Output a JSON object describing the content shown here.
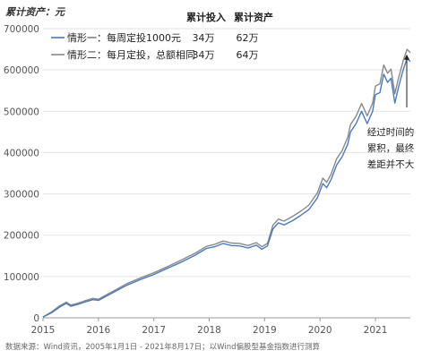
{
  "chart_data": {
    "type": "line",
    "ylabel": "累计资产：元",
    "ylim": [
      0,
      700000
    ],
    "yticks": [
      0,
      100000,
      200000,
      300000,
      400000,
      500000,
      600000,
      700000
    ],
    "xlim": [
      2015.0,
      2021.63
    ],
    "xticks": [
      "2015",
      "2016",
      "2017",
      "2018",
      "2019",
      "2020",
      "2021"
    ],
    "grid": true,
    "legend_position": "top-left",
    "legend": {
      "header_invest": "累计投入",
      "header_assets": "累计资产"
    },
    "series": [
      {
        "name": "情形一：每周定投1000元",
        "invest": "34万",
        "assets": "62万",
        "color": "#4a7ab8",
        "x": [
          2015.0,
          2015.15,
          2015.3,
          2015.42,
          2015.5,
          2015.62,
          2015.75,
          2015.9,
          2016.0,
          2016.08,
          2016.25,
          2016.5,
          2016.75,
          2017.0,
          2017.25,
          2017.5,
          2017.75,
          2017.95,
          2018.1,
          2018.25,
          2018.4,
          2018.55,
          2018.7,
          2018.85,
          2018.95,
          2019.05,
          2019.15,
          2019.25,
          2019.35,
          2019.5,
          2019.65,
          2019.8,
          2019.95,
          2020.05,
          2020.12,
          2020.2,
          2020.3,
          2020.4,
          2020.5,
          2020.55,
          2020.65,
          2020.75,
          2020.85,
          2020.95,
          2021.0,
          2021.08,
          2021.15,
          2021.22,
          2021.28,
          2021.35,
          2021.42,
          2021.5,
          2021.57,
          2021.63
        ],
        "y": [
          2000,
          12000,
          26000,
          35000,
          28000,
          32000,
          38000,
          44000,
          42000,
          48000,
          60000,
          78000,
          92000,
          105000,
          120000,
          135000,
          152000,
          168000,
          172000,
          180000,
          175000,
          174000,
          169000,
          176000,
          166000,
          174000,
          215000,
          230000,
          225000,
          235000,
          248000,
          262000,
          290000,
          325000,
          315000,
          335000,
          370000,
          390000,
          420000,
          450000,
          470000,
          500000,
          470000,
          500000,
          540000,
          545000,
          590000,
          570000,
          580000,
          520000,
          560000,
          600000,
          628000,
          620000
        ]
      },
      {
        "name": "情形二：每月定投，总额相同",
        "invest": "34万",
        "assets": "64万",
        "color": "#888888",
        "x": [
          2015.0,
          2015.15,
          2015.3,
          2015.42,
          2015.5,
          2015.62,
          2015.75,
          2015.9,
          2016.0,
          2016.08,
          2016.25,
          2016.5,
          2016.75,
          2017.0,
          2017.25,
          2017.5,
          2017.75,
          2017.95,
          2018.1,
          2018.25,
          2018.4,
          2018.55,
          2018.7,
          2018.85,
          2018.95,
          2019.05,
          2019.15,
          2019.25,
          2019.35,
          2019.5,
          2019.65,
          2019.8,
          2019.95,
          2020.05,
          2020.12,
          2020.2,
          2020.3,
          2020.4,
          2020.5,
          2020.55,
          2020.65,
          2020.75,
          2020.85,
          2020.95,
          2021.0,
          2021.08,
          2021.15,
          2021.22,
          2021.28,
          2021.35,
          2021.42,
          2021.5,
          2021.57,
          2021.63
        ],
        "y": [
          2000,
          14000,
          29000,
          38000,
          31000,
          35000,
          41000,
          47000,
          45000,
          51000,
          63000,
          82000,
          96000,
          109000,
          124000,
          140000,
          157000,
          173000,
          178000,
          186000,
          181000,
          180000,
          175000,
          182000,
          172000,
          180000,
          224000,
          239000,
          234000,
          245000,
          258000,
          273000,
          302000,
          338000,
          328000,
          348000,
          385000,
          405000,
          437000,
          468000,
          488000,
          519000,
          489000,
          520000,
          561000,
          566000,
          612000,
          592000,
          602000,
          542000,
          582000,
          622000,
          650000,
          642000
        ]
      }
    ],
    "annotation": [
      "经过时间的",
      "累积，最终",
      "差距并不大"
    ]
  },
  "source": "数据来源：Wind资讯，2005年1月1日 - 2021年8月17日；以Wind偏股型基金指数进行测算"
}
